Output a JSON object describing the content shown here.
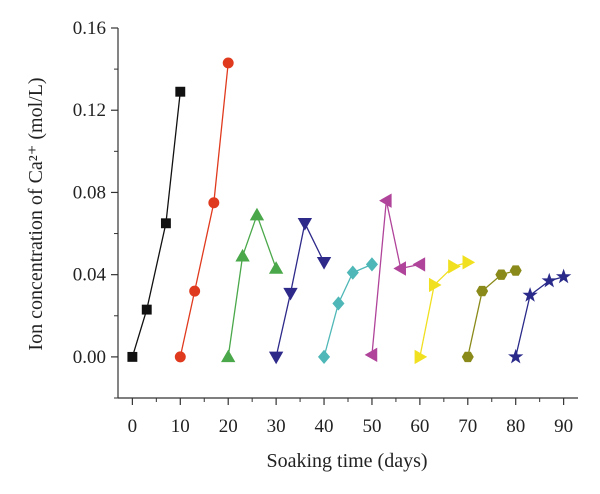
{
  "chart_data": {
    "type": "line",
    "xlabel": "Soaking time (days)",
    "ylabel": "Ion concentration of Ca²⁺ (mol/L)",
    "xlim": [
      -3,
      93
    ],
    "ylim": [
      -0.02,
      0.16
    ],
    "xticks": [
      "0",
      "10",
      "20",
      "30",
      "40",
      "50",
      "60",
      "70",
      "80",
      "90"
    ],
    "yticks": [
      "0.00",
      "0.04",
      "0.08",
      "0.12",
      "0.16"
    ],
    "grid": false,
    "legend": "none",
    "series": [
      {
        "marker": "square",
        "color": "#111111",
        "points": [
          [
            0,
            0.0
          ],
          [
            3,
            0.023
          ],
          [
            7,
            0.065
          ],
          [
            10,
            0.129
          ]
        ]
      },
      {
        "marker": "circle",
        "color": "#e03a1e",
        "points": [
          [
            10,
            0.0
          ],
          [
            13,
            0.032
          ],
          [
            17,
            0.075
          ],
          [
            20,
            0.143
          ]
        ]
      },
      {
        "marker": "triangle-up",
        "color": "#4aa84a",
        "points": [
          [
            20,
            0.0
          ],
          [
            23,
            0.049
          ],
          [
            26,
            0.069
          ],
          [
            30,
            0.043
          ]
        ]
      },
      {
        "marker": "triangle-down",
        "color": "#2e2a8a",
        "points": [
          [
            30,
            0.0
          ],
          [
            33,
            0.031
          ],
          [
            36,
            0.065
          ],
          [
            40,
            0.046
          ]
        ]
      },
      {
        "marker": "diamond",
        "color": "#4fb7b7",
        "points": [
          [
            40,
            0.0
          ],
          [
            43,
            0.026
          ],
          [
            46,
            0.041
          ],
          [
            50,
            0.045
          ]
        ]
      },
      {
        "marker": "triangle-left",
        "color": "#b0449a",
        "points": [
          [
            50,
            0.001
          ],
          [
            53,
            0.076
          ],
          [
            56,
            0.043
          ],
          [
            60,
            0.045
          ]
        ]
      },
      {
        "marker": "triangle-right",
        "color": "#f0e020",
        "points": [
          [
            60,
            0.0
          ],
          [
            63,
            0.035
          ],
          [
            67,
            0.044
          ],
          [
            70,
            0.046
          ]
        ]
      },
      {
        "marker": "hexagon",
        "color": "#8a8a1a",
        "points": [
          [
            70,
            0.0
          ],
          [
            73,
            0.032
          ],
          [
            77,
            0.04
          ],
          [
            80,
            0.042
          ]
        ]
      },
      {
        "marker": "star",
        "color": "#2a2a8a",
        "points": [
          [
            80,
            0.0
          ],
          [
            83,
            0.03
          ],
          [
            87,
            0.037
          ],
          [
            90,
            0.039
          ]
        ]
      }
    ]
  }
}
